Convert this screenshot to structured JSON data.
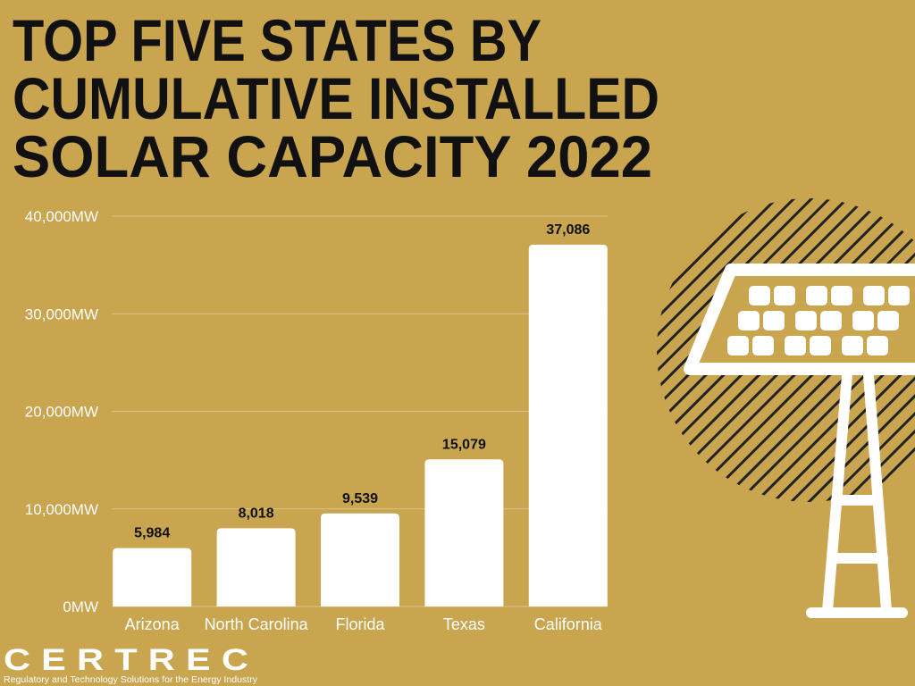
{
  "chart_data": {
    "type": "bar",
    "title_lines": [
      "TOP FIVE STATES BY",
      "CUMULATIVE INSTALLED",
      "SOLAR CAPACITY 2022"
    ],
    "categories": [
      "Arizona",
      "North Carolina",
      "Florida",
      "Texas",
      "California"
    ],
    "values": [
      5984,
      8018,
      9539,
      15079,
      37086
    ],
    "value_labels": [
      "5,984",
      "8,018",
      "9,539",
      "15,079",
      "37,086"
    ],
    "color": "#ffffff",
    "ylim": [
      0,
      40000
    ],
    "yticks": [
      {
        "value": 0,
        "label": "0MW"
      },
      {
        "value": 10000,
        "label": "10,000MW"
      },
      {
        "value": 20000,
        "label": "20,000MW"
      },
      {
        "value": 30000,
        "label": "30,000MW"
      },
      {
        "value": 40000,
        "label": "40,000MW"
      }
    ],
    "grid": true
  },
  "logo": {
    "name": "CERTREC",
    "tagline": "Regulatory and Technology Solutions for the Energy Industry"
  }
}
